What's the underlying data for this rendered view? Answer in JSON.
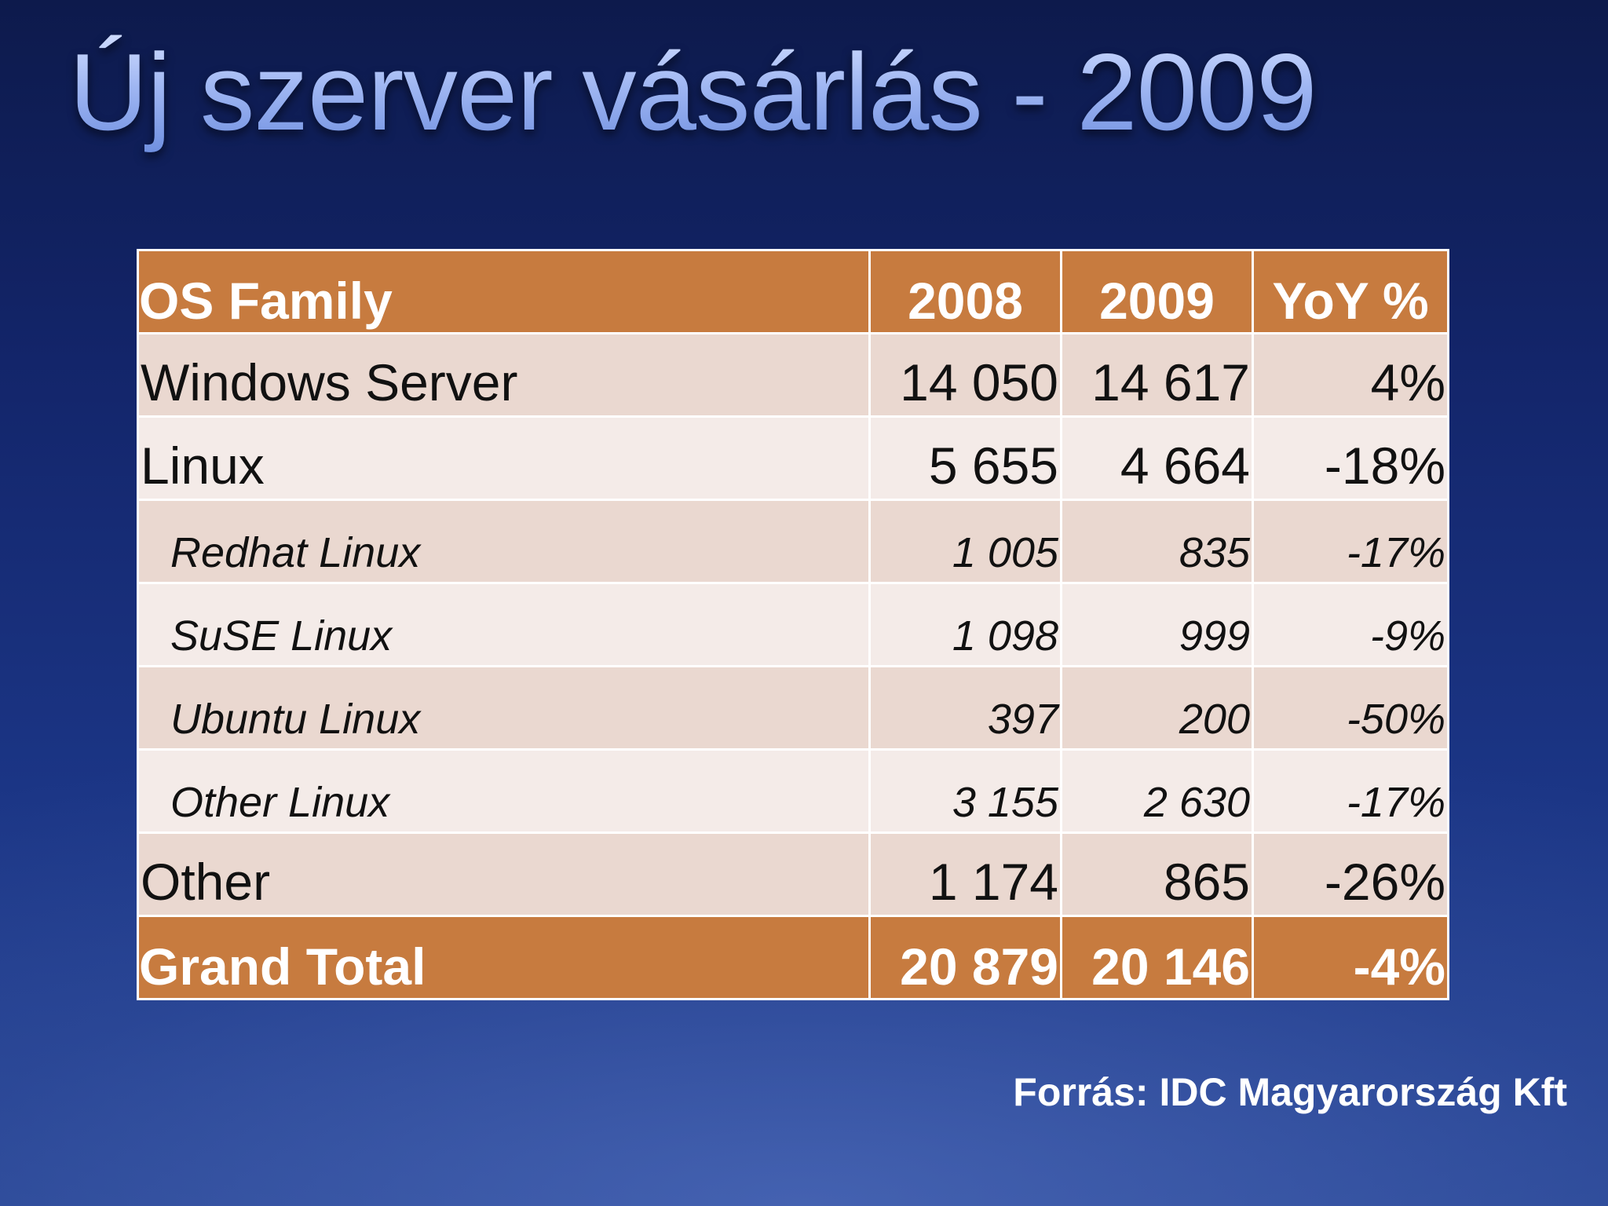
{
  "slide": {
    "title": "Új szerver vásárlás - 2009",
    "source": "Forrás: IDC Magyarország Kft"
  },
  "table": {
    "headers": [
      "OS Family",
      "2008",
      "2009",
      "YoY %"
    ],
    "rows": [
      {
        "family": "Windows Server",
        "y2008": "14 050",
        "y2009": "14 617",
        "yoy": "4%"
      },
      {
        "family": "Linux",
        "y2008": "5 655",
        "y2009": "4 664",
        "yoy": "-18%"
      },
      {
        "family": "Redhat Linux",
        "y2008": "1 005",
        "y2009": "835",
        "yoy": "-17%"
      },
      {
        "family": "SuSE Linux",
        "y2008": "1 098",
        "y2009": "999",
        "yoy": "-9%"
      },
      {
        "family": "Ubuntu Linux",
        "y2008": "397",
        "y2009": "200",
        "yoy": "-50%"
      },
      {
        "family": "Other Linux",
        "y2008": "3 155",
        "y2009": "2 630",
        "yoy": "-17%"
      },
      {
        "family": "Other",
        "y2008": "1 174",
        "y2009": "865",
        "yoy": "-26%"
      }
    ],
    "total": {
      "family": "Grand Total",
      "y2008": "20 879",
      "y2009": "20 146",
      "yoy": "-4%"
    }
  },
  "colors": {
    "header_bg": "#c77b3f",
    "row_dark": "#ead8d0",
    "row_light": "#f4ebe8",
    "background": "#13256a",
    "title": "#a9bdf5"
  }
}
